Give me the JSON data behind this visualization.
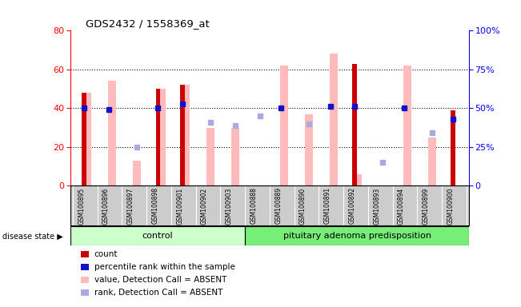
{
  "title": "GDS2432 / 1558369_at",
  "samples": [
    "GSM100895",
    "GSM100896",
    "GSM100897",
    "GSM100898",
    "GSM100901",
    "GSM100902",
    "GSM100903",
    "GSM100888",
    "GSM100889",
    "GSM100890",
    "GSM100891",
    "GSM100892",
    "GSM100893",
    "GSM100894",
    "GSM100899",
    "GSM100900"
  ],
  "control_count": 7,
  "red_bars": [
    48,
    0,
    0,
    50,
    52,
    0,
    0,
    0,
    0,
    0,
    0,
    63,
    0,
    0,
    0,
    39
  ],
  "pink_bars": [
    48,
    54,
    13,
    50,
    52,
    30,
    30,
    0,
    62,
    37,
    68,
    6,
    0,
    62,
    25,
    0
  ],
  "blue_squares": [
    50,
    49,
    null,
    50,
    53,
    null,
    null,
    null,
    50,
    null,
    51,
    51,
    null,
    50,
    null,
    43
  ],
  "lightblue_squares": [
    null,
    null,
    25,
    null,
    null,
    41,
    39,
    45,
    null,
    40,
    null,
    null,
    15,
    null,
    34,
    null
  ],
  "left_ylim": [
    0,
    80
  ],
  "right_ylim": [
    0,
    100
  ],
  "left_yticks": [
    0,
    20,
    40,
    60,
    80
  ],
  "right_yticks": [
    0,
    25,
    50,
    75,
    100
  ],
  "right_yticklabels": [
    "0",
    "25%",
    "50%",
    "75%",
    "100%"
  ],
  "pink_bar_color": "#FFBBBB",
  "red_bar_color": "#CC0000",
  "blue_sq_color": "#1111CC",
  "lb_sq_color": "#AAAADD",
  "ctrl_color": "#CCFFCC",
  "aden_color": "#77EE77",
  "lbl_bg_color": "#CCCCCC",
  "control_label": "control",
  "adenoma_label": "pituitary adenoma predisposition",
  "disease_state_label": "disease state",
  "legend_labels": [
    "count",
    "percentile rank within the sample",
    "value, Detection Call = ABSENT",
    "rank, Detection Call = ABSENT"
  ],
  "legend_colors": [
    "#CC0000",
    "#1111CC",
    "#FFBBBB",
    "#AAAADD"
  ]
}
